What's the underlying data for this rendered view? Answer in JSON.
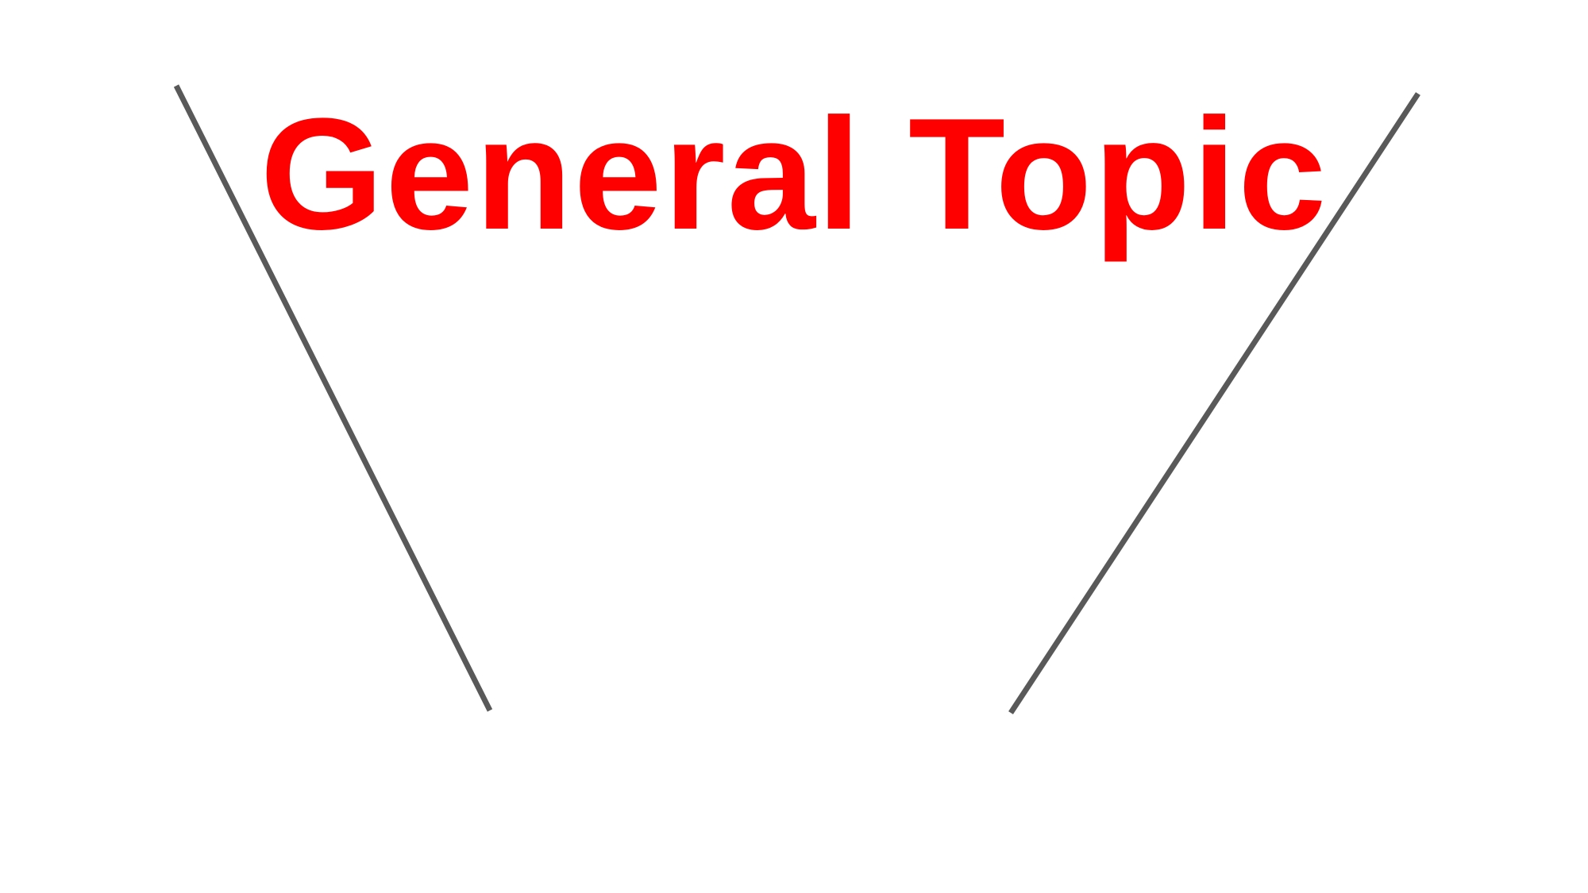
{
  "diagram": {
    "title": "General Topic",
    "colors": {
      "title": "#ff0000",
      "funnel_line": "#595959",
      "background": "#ffffff"
    }
  }
}
